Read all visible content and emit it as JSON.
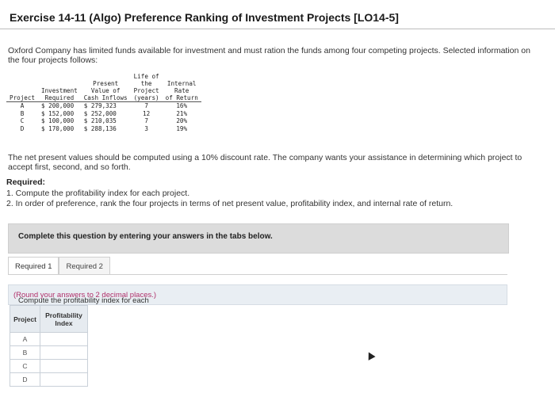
{
  "header": {
    "title": "Exercise 14-11 (Algo) Preference Ranking of Investment Projects [LO14-5]"
  },
  "intro": "Oxford Company has limited funds available for investment and must ration the funds among four competing projects. Selected information on the four projects follows:",
  "projects_table": {
    "headers": {
      "project": "Project",
      "investment": [
        "Investment",
        "Required"
      ],
      "present_value": [
        "Present",
        "Value of",
        "Cash Inflows"
      ],
      "life": [
        "Life of",
        "the",
        "Project",
        "(years)"
      ],
      "irr": [
        "Internal",
        "Rate",
        "of Return"
      ]
    },
    "rows": [
      {
        "project": "A",
        "investment": "$ 200,000",
        "present_value": "$ 279,323",
        "life": "7",
        "irr": "16%"
      },
      {
        "project": "B",
        "investment": "$ 152,000",
        "present_value": "$ 252,000",
        "life": "12",
        "irr": "21%"
      },
      {
        "project": "C",
        "investment": "$ 100,000",
        "present_value": "$ 210,035",
        "life": "7",
        "irr": "20%"
      },
      {
        "project": "D",
        "investment": "$ 170,000",
        "present_value": "$ 288,136",
        "life": "3",
        "irr": "19%"
      }
    ]
  },
  "npv_note": "The net present values should be computed using a 10% discount rate. The company wants your assistance in determining which project to accept first, second, and so forth.",
  "required": {
    "heading": "Required:",
    "items": [
      "1. Compute the profitability index for each project.",
      "2. In order of preference, rank the four projects in terms of net present value, profitability index, and internal rate of return."
    ]
  },
  "banner": "Complete this question by entering your answers in the tabs below.",
  "tabs": [
    "Required 1",
    "Required 2"
  ],
  "instruction": {
    "main": "Compute the profitability index for each project.",
    "hint": "(Round your answers to 2 decimal places.)"
  },
  "answer_table": {
    "col_project": "Project",
    "col_index": [
      "Profitability",
      "Index"
    ],
    "projects": [
      "A",
      "B",
      "C",
      "D"
    ],
    "values": [
      "",
      "",
      "",
      ""
    ]
  }
}
